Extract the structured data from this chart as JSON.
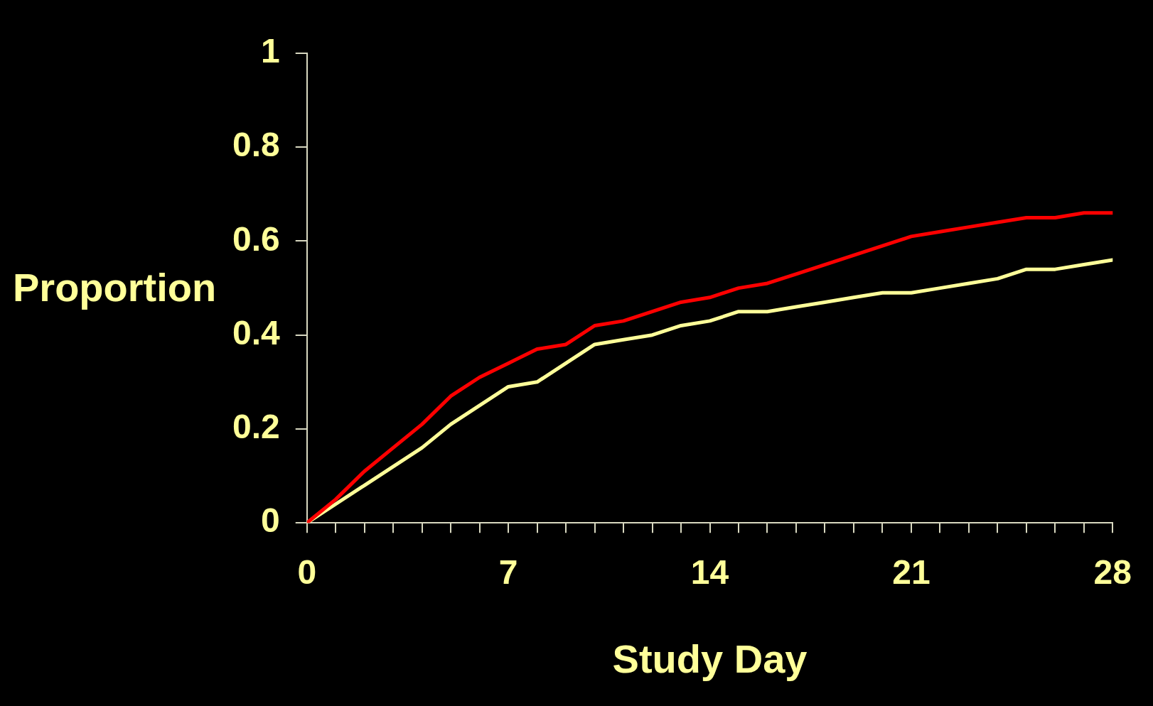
{
  "chart_data": {
    "type": "line",
    "xlabel": "Study Day",
    "ylabel": "Proportion",
    "x": [
      0,
      1,
      2,
      3,
      4,
      5,
      6,
      7,
      8,
      9,
      10,
      11,
      12,
      13,
      14,
      15,
      16,
      17,
      18,
      19,
      20,
      21,
      22,
      23,
      24,
      25,
      26,
      27,
      28
    ],
    "series": [
      {
        "color": "#ff0000",
        "values": [
          0,
          0.05,
          0.11,
          0.16,
          0.21,
          0.27,
          0.31,
          0.34,
          0.37,
          0.38,
          0.42,
          0.43,
          0.45,
          0.47,
          0.48,
          0.5,
          0.51,
          0.53,
          0.55,
          0.57,
          0.59,
          0.61,
          0.62,
          0.63,
          0.64,
          0.65,
          0.65,
          0.66,
          0.66
        ]
      },
      {
        "color": "#ffff99",
        "values": [
          0,
          0.04,
          0.08,
          0.12,
          0.16,
          0.21,
          0.25,
          0.29,
          0.3,
          0.34,
          0.38,
          0.39,
          0.4,
          0.42,
          0.43,
          0.45,
          0.45,
          0.46,
          0.47,
          0.48,
          0.49,
          0.49,
          0.5,
          0.51,
          0.52,
          0.54,
          0.54,
          0.55,
          0.56
        ]
      }
    ],
    "xlim": [
      0,
      28
    ],
    "xticks": [
      0,
      {
        "value": 1,
        "label": null
      },
      {
        "value": 2,
        "label": null
      },
      {
        "value": 3,
        "label": null
      },
      {
        "value": 4,
        "label": null
      },
      {
        "value": 5,
        "label": null
      },
      {
        "value": 6,
        "label": null
      },
      7,
      {
        "value": 8,
        "label": null
      },
      {
        "value": 9,
        "label": null
      },
      {
        "value": 10,
        "label": null
      },
      {
        "value": 11,
        "label": null
      },
      {
        "value": 12,
        "label": null
      },
      {
        "value": 13,
        "label": null
      },
      14,
      {
        "value": 15,
        "label": null
      },
      {
        "value": 16,
        "label": null
      },
      {
        "value": 17,
        "label": null
      },
      {
        "value": 18,
        "label": null
      },
      {
        "value": 19,
        "label": null
      },
      {
        "value": 20,
        "label": null
      },
      21,
      {
        "value": 22,
        "label": null
      },
      {
        "value": 23,
        "label": null
      },
      {
        "value": 24,
        "label": null
      },
      {
        "value": 25,
        "label": null
      },
      {
        "value": 26,
        "label": null
      },
      {
        "value": 27,
        "label": null
      },
      28
    ],
    "ylim": [
      0,
      1
    ],
    "yticks": [
      0,
      0.2,
      0.4,
      0.6,
      0.8,
      1
    ],
    "grid": false,
    "legend": false,
    "marker": "none",
    "line_style": "solid"
  }
}
